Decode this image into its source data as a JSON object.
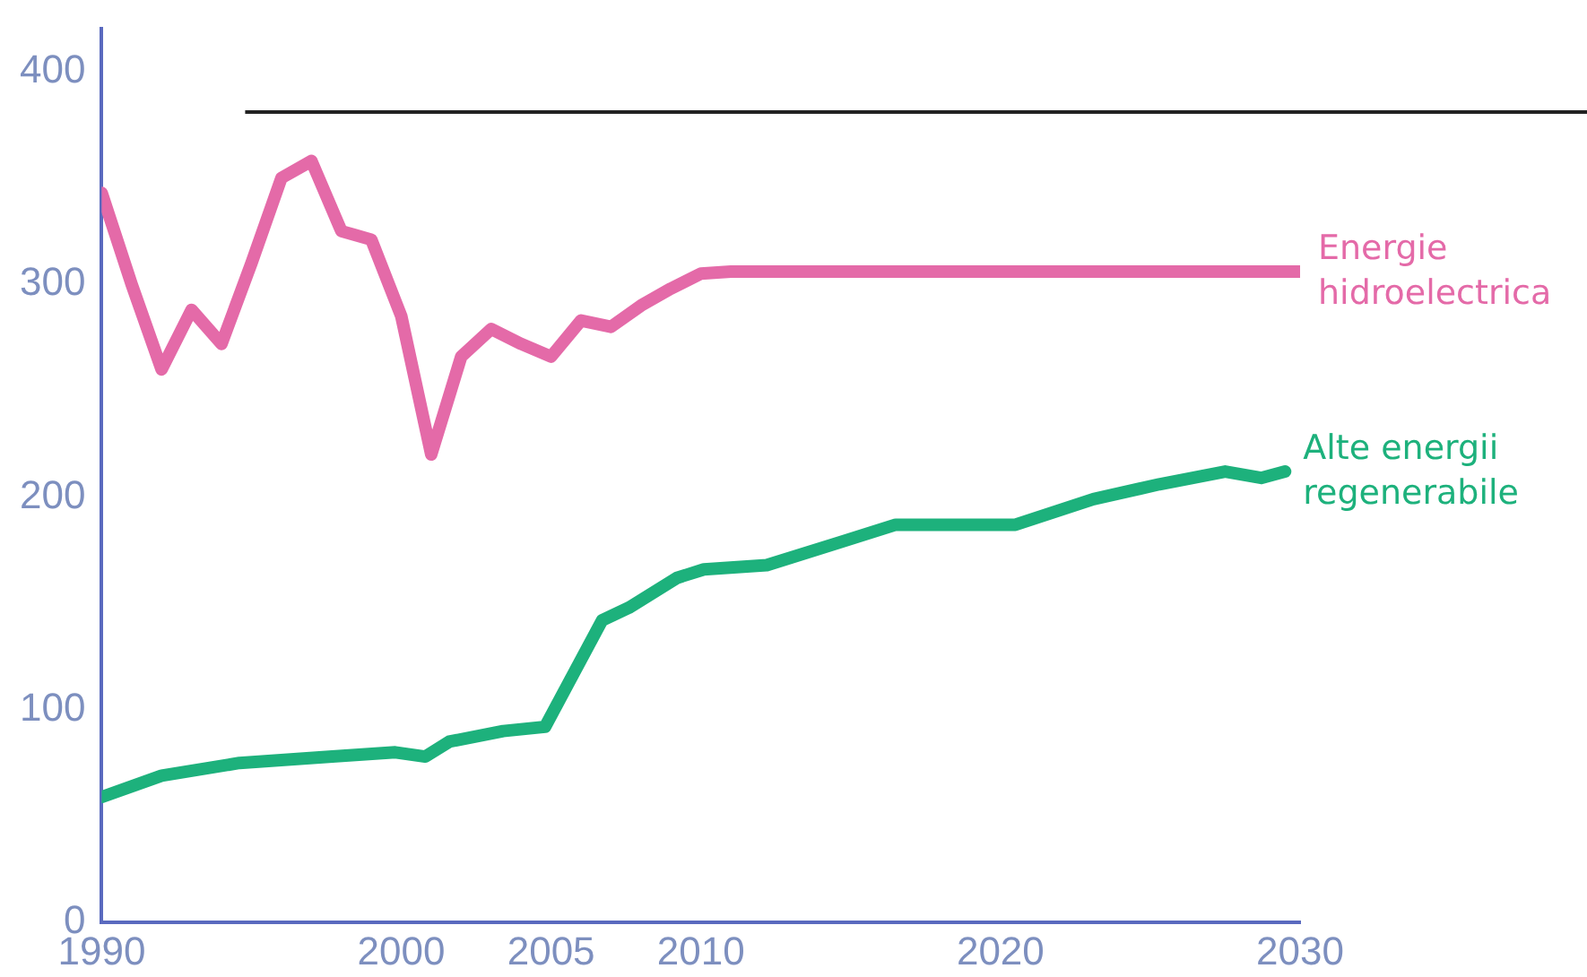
{
  "chart_data": {
    "type": "line",
    "xlim": [
      1990,
      2030
    ],
    "xticks": [
      1990,
      2000,
      2005,
      2010,
      2020,
      2030
    ],
    "ylim": [
      0,
      420
    ],
    "yticks": [
      0,
      100,
      200,
      300,
      400
    ],
    "grid": false,
    "legend": false,
    "marker": "none",
    "line_style": "solid",
    "series": [
      {
        "name": "Energie hidroelectrica",
        "color": "#e46aa8",
        "x": [
          1990,
          1991,
          1992,
          1993,
          1994,
          1995,
          1996,
          1997,
          1998,
          1999,
          2000,
          2001,
          2002,
          2003,
          2004,
          2005,
          2006,
          2007,
          2008,
          2009,
          2010,
          2011,
          2030
        ],
        "values": [
          343,
          300,
          260,
          288,
          272,
          310,
          350,
          358,
          325,
          321,
          285,
          220,
          266,
          279,
          272,
          266,
          283,
          280,
          290,
          298,
          305,
          306,
          306
        ]
      },
      {
        "name": "Alte energii regenerabile",
        "color": "#1db17c",
        "x": [
          1990,
          1992,
          1994.6,
          1997.7,
          1999.8,
          2000.8,
          2001.6,
          2003.4,
          2004.8,
          2006.7,
          2007.6,
          2009.2,
          2010.1,
          2012.2,
          2014.7,
          2016.5,
          2018.4,
          2020.5,
          2023.1,
          2025.3,
          2027.5,
          2028.7,
          2029.5
        ],
        "values": [
          59,
          69,
          75,
          78,
          80,
          78,
          85,
          90,
          92,
          142,
          148,
          162,
          166,
          168,
          179,
          187,
          187,
          187,
          199,
          206,
          212,
          209,
          212
        ]
      }
    ],
    "ref_lines": [
      {
        "axis": "y",
        "value": 381,
        "color": "#222222"
      }
    ]
  }
}
